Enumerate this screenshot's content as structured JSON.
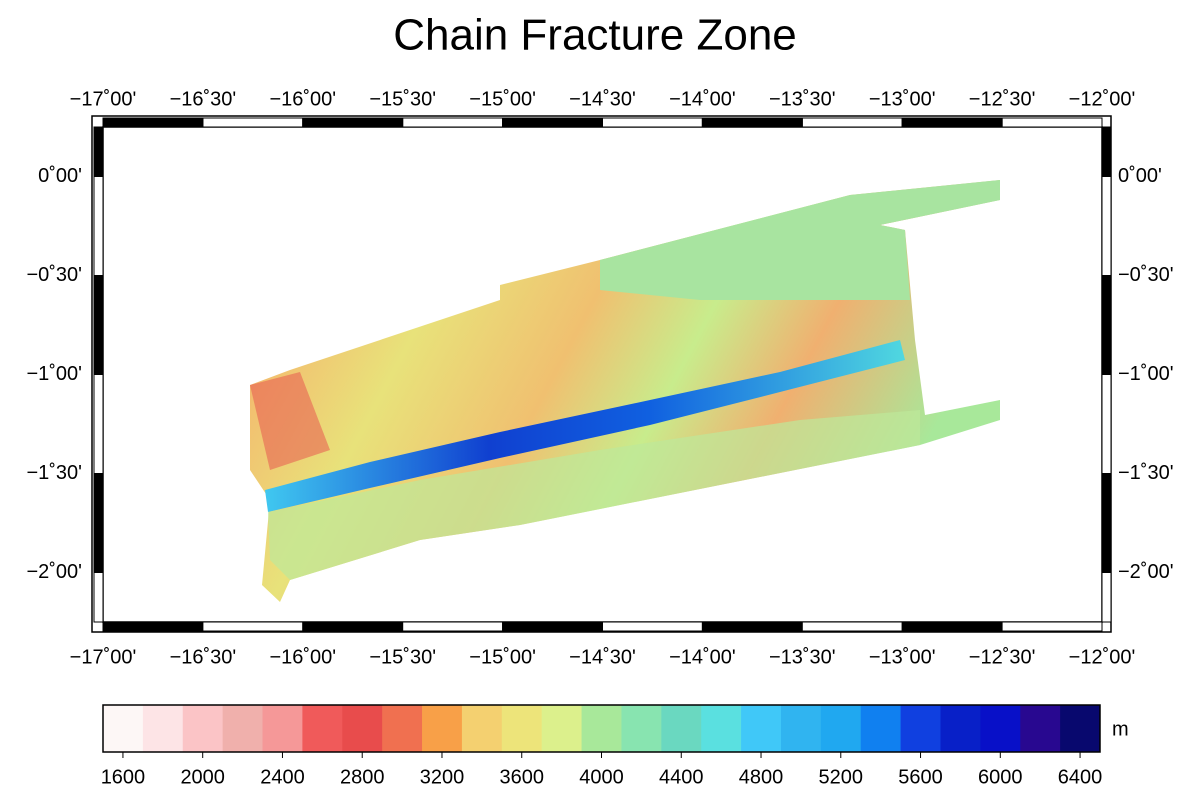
{
  "title": "Chain Fracture Zone",
  "map": {
    "xlim": [
      -17,
      -12
    ],
    "ylim": [
      -2.25,
      0.25
    ],
    "lon_ticks": [
      {
        "value": -17,
        "label": "−17˚00'"
      },
      {
        "value": -16.5,
        "label": "−16˚30'"
      },
      {
        "value": -16,
        "label": "−16˚00'"
      },
      {
        "value": -15.5,
        "label": "−15˚30'"
      },
      {
        "value": -15,
        "label": "−15˚00'"
      },
      {
        "value": -14.5,
        "label": "−14˚30'"
      },
      {
        "value": -14,
        "label": "−14˚00'"
      },
      {
        "value": -13.5,
        "label": "−13˚30'"
      },
      {
        "value": -13,
        "label": "−13˚00'"
      },
      {
        "value": -12.5,
        "label": "−12˚30'"
      },
      {
        "value": -12,
        "label": "−12˚00'"
      }
    ],
    "lat_ticks": [
      {
        "value": 0,
        "label": "0˚00'"
      },
      {
        "value": -0.5,
        "label": "−0˚30'"
      },
      {
        "value": -1,
        "label": "−1˚00'"
      },
      {
        "value": -1.5,
        "label": "−1˚30'"
      },
      {
        "value": -2,
        "label": "−2˚00'"
      }
    ]
  },
  "colorbar": {
    "unit": "m",
    "lim": [
      1500,
      6500
    ],
    "ticks": [
      1600,
      2000,
      2400,
      2800,
      3200,
      3600,
      4000,
      4400,
      4800,
      5200,
      5600,
      6000,
      6400
    ],
    "colors": [
      "#fdf7f6",
      "#fde4e6",
      "#fbc4c6",
      "#f0b0ac",
      "#f59898",
      "#f05a5a",
      "#e84c4c",
      "#f07050",
      "#f8a048",
      "#f4d070",
      "#ede47a",
      "#dcf08c",
      "#a8e89a",
      "#88e4b0",
      "#6ad8c0",
      "#5ae0e0",
      "#40c8f8",
      "#30b4f0",
      "#20a8f0",
      "#1080f0",
      "#1040e0",
      "#0820c8",
      "#0810c8",
      "#280890",
      "#08086e"
    ]
  }
}
